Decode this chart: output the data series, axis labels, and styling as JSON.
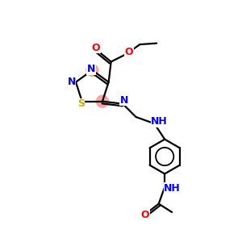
{
  "bg_color": "#ffffff",
  "atom_colors": {
    "N": "#0000ff",
    "O": "#ff0000",
    "S": "#ccaa00",
    "C": "#000000"
  },
  "highlight_color": "#ff9999",
  "bond_color": "#000000",
  "bond_width": 1.6,
  "fig_size": [
    3.0,
    3.0
  ],
  "dpi": 100
}
